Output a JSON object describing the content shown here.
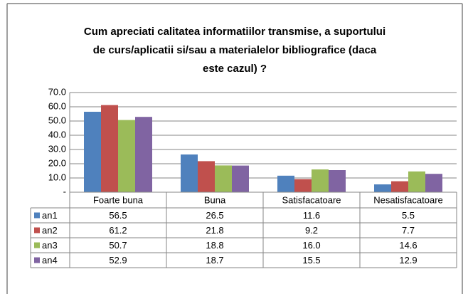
{
  "chart_data": {
    "type": "bar",
    "title": [
      "Cum apreciati calitatea informatiilor transmise, a suportului",
      "de curs/aplicatii si/sau a materialelor bibliografice (daca",
      "este cazul) ?"
    ],
    "categories": [
      "Foarte buna",
      "Buna",
      "Satisfacatoare",
      "Nesatisfacatoare"
    ],
    "series": [
      {
        "name": "an1",
        "color": "#4f81bd",
        "values": [
          56.5,
          26.5,
          11.6,
          5.5
        ],
        "value_labels": [
          "56.5",
          "26.5",
          "11.6",
          "5.5"
        ]
      },
      {
        "name": "an2",
        "color": "#c0504d",
        "values": [
          61.2,
          21.8,
          9.2,
          7.7
        ],
        "value_labels": [
          "61.2",
          "21.8",
          "9.2",
          "7.7"
        ]
      },
      {
        "name": "an3",
        "color": "#9bbb59",
        "values": [
          50.7,
          18.8,
          16.0,
          14.6
        ],
        "value_labels": [
          "50.7",
          "18.8",
          "16.0",
          "14.6"
        ]
      },
      {
        "name": "an4",
        "color": "#8064a2",
        "values": [
          52.9,
          18.7,
          15.5,
          12.9
        ],
        "value_labels": [
          "52.9",
          "18.7",
          "15.5",
          "12.9"
        ]
      }
    ],
    "ylim": [
      0,
      70
    ],
    "yticks": [
      {
        "value": 0,
        "label": "-"
      },
      {
        "value": 10,
        "label": "10.0"
      },
      {
        "value": 20,
        "label": "20.0"
      },
      {
        "value": 30,
        "label": "30.0"
      },
      {
        "value": 40,
        "label": "40.0"
      },
      {
        "value": 50,
        "label": "50.0"
      },
      {
        "value": 60,
        "label": "60.0"
      },
      {
        "value": 70,
        "label": "70.0"
      }
    ],
    "grid": true
  }
}
